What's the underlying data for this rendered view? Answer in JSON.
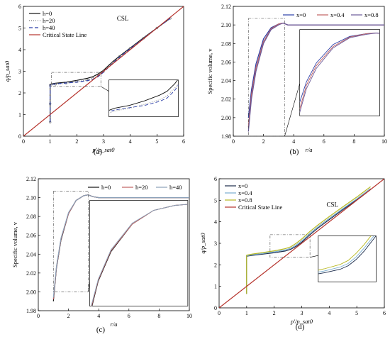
{
  "chart_data": [
    {
      "type": "line",
      "panel": "a",
      "caption": "(a)",
      "ylabel": "q/p_sat0",
      "xlabel": "p'/p_sat0",
      "xlim": [
        0,
        6
      ],
      "ylim": [
        0,
        6
      ],
      "xticks": [
        0,
        1,
        2,
        3,
        4,
        5,
        6
      ],
      "yticks": [
        0,
        1,
        2,
        3,
        4,
        5,
        6
      ],
      "annotation": "CSL",
      "legend_placement": "top-left",
      "series": [
        {
          "name": "h=0",
          "color": "#111111",
          "style": "solid",
          "x": [
            1.0,
            1.0,
            1.0,
            1.2,
            1.6,
            2.0,
            2.4,
            2.6,
            2.8,
            3.0,
            3.3,
            3.6,
            4.0,
            4.5,
            5.0,
            5.5
          ],
          "y": [
            0.65,
            1.5,
            2.4,
            2.45,
            2.5,
            2.58,
            2.68,
            2.75,
            2.88,
            3.05,
            3.4,
            3.7,
            4.08,
            4.55,
            5.0,
            5.45
          ]
        },
        {
          "name": "h=20",
          "color": "#777777",
          "style": "dot",
          "x": [
            1.0,
            1.0,
            1.0,
            1.2,
            1.6,
            2.0,
            2.4,
            2.6,
            2.8,
            3.0,
            3.3,
            3.6,
            4.0,
            4.5,
            5.0,
            5.5
          ],
          "y": [
            0.65,
            1.5,
            2.35,
            2.4,
            2.45,
            2.52,
            2.6,
            2.67,
            2.8,
            3.0,
            3.35,
            3.68,
            4.06,
            4.53,
            5.0,
            5.45
          ]
        },
        {
          "name": "h=40",
          "color": "#2c3fa8",
          "style": "dash",
          "x": [
            1.0,
            1.0,
            1.0,
            1.2,
            1.6,
            2.0,
            2.4,
            2.6,
            2.8,
            3.0,
            3.3,
            3.6,
            4.0,
            4.5,
            5.0,
            5.5
          ],
          "y": [
            0.65,
            1.5,
            2.38,
            2.42,
            2.46,
            2.5,
            2.57,
            2.63,
            2.76,
            2.96,
            3.32,
            3.66,
            4.05,
            4.52,
            5.0,
            5.45
          ]
        },
        {
          "name": "Critical State Line",
          "color": "#b5312a",
          "style": "solid",
          "x": [
            0,
            6
          ],
          "y": [
            0,
            6
          ]
        }
      ]
    },
    {
      "type": "line",
      "panel": "b",
      "caption": "(b)",
      "ylabel": "Specific volume, v",
      "xlabel": "r/a",
      "xlim": [
        0,
        10
      ],
      "ylim": [
        1.98,
        2.12
      ],
      "xticks": [
        0,
        2,
        4,
        6,
        8,
        10
      ],
      "yticks": [
        1.98,
        2.0,
        2.02,
        2.04,
        2.06,
        2.08,
        2.1,
        2.12
      ],
      "legend_placement": "top",
      "series": [
        {
          "name": "x=0",
          "color": "#2c3fa8",
          "x": [
            1.0,
            1.2,
            1.5,
            2.0,
            2.5,
            3.0,
            3.3,
            3.6,
            4,
            5,
            6,
            7,
            8,
            9,
            10
          ],
          "y": [
            2.0,
            2.03,
            2.058,
            2.085,
            2.097,
            2.101,
            2.102,
            2.1,
            2.1,
            2.1,
            2.1,
            2.1,
            2.1,
            2.1,
            2.1
          ]
        },
        {
          "name": "x=0.4",
          "color": "#c06060",
          "x": [
            1.0,
            1.2,
            1.5,
            2.0,
            2.5,
            3.0,
            3.3,
            3.6,
            4,
            5,
            6,
            7,
            8,
            9,
            10
          ],
          "y": [
            1.99,
            2.025,
            2.054,
            2.082,
            2.096,
            2.101,
            2.102,
            2.1,
            2.1,
            2.1,
            2.1,
            2.1,
            2.1,
            2.1,
            2.1
          ]
        },
        {
          "name": "x=0.8",
          "color": "#6a5a9a",
          "x": [
            1.0,
            1.2,
            1.5,
            2.0,
            2.5,
            3.0,
            3.3,
            3.6,
            4,
            5,
            6,
            7,
            8,
            9,
            10
          ],
          "y": [
            1.985,
            2.02,
            2.05,
            2.08,
            2.095,
            2.1,
            2.102,
            2.1,
            2.1,
            2.1,
            2.1,
            2.1,
            2.1,
            2.1,
            2.1
          ]
        }
      ]
    },
    {
      "type": "line",
      "panel": "c",
      "caption": "(c)",
      "ylabel": "Specific volume, v",
      "xlabel": "r/a",
      "xlim": [
        0,
        10
      ],
      "ylim": [
        1.98,
        2.12
      ],
      "xticks": [
        0,
        2,
        4,
        6,
        8,
        10
      ],
      "yticks": [
        1.98,
        2.0,
        2.02,
        2.04,
        2.06,
        2.08,
        2.1,
        2.12
      ],
      "legend_placement": "top",
      "series": [
        {
          "name": "h=0",
          "color": "#111111",
          "x": [
            1.0,
            1.2,
            1.5,
            2.0,
            2.5,
            3.0,
            3.3,
            3.6,
            4,
            5,
            6,
            7,
            8,
            9,
            10
          ],
          "y": [
            1.99,
            2.025,
            2.055,
            2.083,
            2.097,
            2.102,
            2.103,
            2.101,
            2.1,
            2.1,
            2.1,
            2.1,
            2.1,
            2.1,
            2.1
          ]
        },
        {
          "name": "h=20",
          "color": "#c06060",
          "x": [
            1.0,
            1.2,
            1.5,
            2.0,
            2.5,
            3.0,
            3.3,
            3.6,
            4,
            5,
            6,
            7,
            8,
            9,
            10
          ],
          "y": [
            1.992,
            2.026,
            2.056,
            2.083,
            2.097,
            2.102,
            2.103,
            2.101,
            2.1,
            2.1,
            2.1,
            2.1,
            2.1,
            2.1,
            2.1
          ]
        },
        {
          "name": "h=40",
          "color": "#8aa0b8",
          "x": [
            1.0,
            1.2,
            1.5,
            2.0,
            2.5,
            3.0,
            3.3,
            3.6,
            4,
            5,
            6,
            7,
            8,
            9,
            10
          ],
          "y": [
            1.994,
            2.027,
            2.057,
            2.084,
            2.097,
            2.102,
            2.103,
            2.101,
            2.1,
            2.1,
            2.1,
            2.1,
            2.1,
            2.1,
            2.1
          ]
        }
      ]
    },
    {
      "type": "line",
      "panel": "d",
      "caption": "(d)",
      "ylabel": "q/p_sat0",
      "xlabel": "p'/p_sat0",
      "xlim": [
        0,
        6
      ],
      "ylim": [
        0,
        6
      ],
      "xticks": [
        0,
        1,
        2,
        3,
        4,
        5,
        6
      ],
      "yticks": [
        0,
        1,
        2,
        3,
        4,
        5,
        6
      ],
      "annotation": "CSL",
      "legend_placement": "top-left",
      "series": [
        {
          "name": "x=0",
          "color": "#1a2a4a",
          "x": [
            1.0,
            1.0,
            1.2,
            1.6,
            2.0,
            2.4,
            2.6,
            2.8,
            3.0,
            3.3,
            3.6,
            4.0,
            4.5,
            5.0,
            5.5
          ],
          "y": [
            0.65,
            2.4,
            2.44,
            2.5,
            2.56,
            2.64,
            2.72,
            2.86,
            3.05,
            3.4,
            3.72,
            4.1,
            4.57,
            5.02,
            5.5
          ]
        },
        {
          "name": "x=0.4",
          "color": "#7aaed0",
          "x": [
            1.0,
            1.0,
            1.2,
            1.6,
            2.0,
            2.4,
            2.6,
            2.8,
            3.0,
            3.3,
            3.6,
            4.0,
            4.5,
            5.0,
            5.5
          ],
          "y": [
            0.65,
            2.42,
            2.47,
            2.53,
            2.6,
            2.69,
            2.77,
            2.92,
            3.12,
            3.46,
            3.78,
            4.16,
            4.62,
            5.07,
            5.55
          ]
        },
        {
          "name": "x=0.8",
          "color": "#b8b820",
          "x": [
            1.0,
            1.0,
            1.2,
            1.6,
            2.0,
            2.4,
            2.6,
            2.8,
            3.0,
            3.3,
            3.6,
            4.0,
            4.5,
            5.0,
            5.5
          ],
          "y": [
            0.65,
            2.45,
            2.5,
            2.57,
            2.65,
            2.75,
            2.84,
            3.0,
            3.2,
            3.55,
            3.86,
            4.24,
            4.7,
            5.15,
            5.63
          ]
        },
        {
          "name": "Critical State Line",
          "color": "#b5312a",
          "x": [
            0,
            6
          ],
          "y": [
            0,
            6
          ]
        }
      ]
    }
  ]
}
